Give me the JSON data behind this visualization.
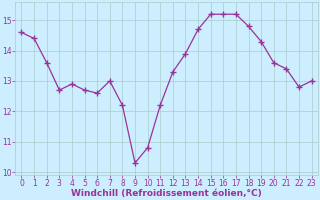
{
  "x": [
    0,
    1,
    2,
    3,
    4,
    5,
    6,
    7,
    8,
    9,
    10,
    11,
    12,
    13,
    14,
    15,
    16,
    17,
    18,
    19,
    20,
    21,
    22,
    23
  ],
  "y": [
    14.6,
    14.4,
    13.6,
    12.7,
    12.9,
    12.7,
    12.6,
    13.0,
    12.2,
    10.3,
    10.8,
    12.2,
    13.3,
    13.9,
    14.7,
    15.2,
    15.2,
    15.2,
    14.8,
    14.3,
    13.6,
    13.4,
    12.8,
    13.0
  ],
  "line_color": "#993399",
  "marker": "+",
  "bg_color": "#cceeff",
  "grid_color": "#aacccc",
  "xlabel": "Windchill (Refroidissement éolien,°C)",
  "xlabel_color": "#993399",
  "tick_color": "#993399",
  "xlim": [
    -0.5,
    23.5
  ],
  "ylim": [
    9.9,
    15.6
  ],
  "yticks": [
    10,
    11,
    12,
    13,
    14,
    15
  ],
  "xticks": [
    0,
    1,
    2,
    3,
    4,
    5,
    6,
    7,
    8,
    9,
    10,
    11,
    12,
    13,
    14,
    15,
    16,
    17,
    18,
    19,
    20,
    21,
    22,
    23
  ],
  "linewidth": 0.9,
  "markersize": 4,
  "markeredgewidth": 1.0,
  "tick_fontsize": 5.5,
  "xlabel_fontsize": 6.5
}
